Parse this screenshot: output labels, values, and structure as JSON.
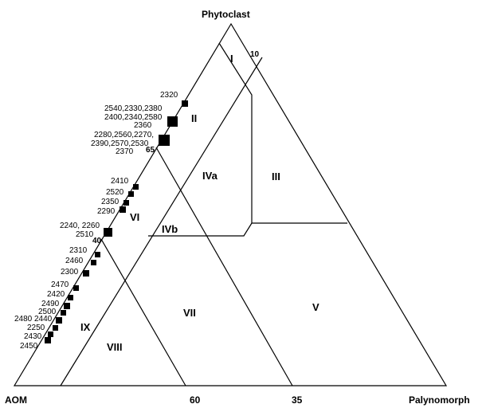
{
  "corners": {
    "top": "Phytoclast",
    "left": "AOM",
    "right": "Palynomorph"
  },
  "axis_ticks": {
    "base": [
      "60",
      "35"
    ],
    "left": [
      "65",
      "40"
    ],
    "right": [
      "10"
    ]
  },
  "fields": [
    "I",
    "II",
    "III",
    "IVa",
    "IVb",
    "V",
    "VI",
    "VII",
    "VIII",
    "IX"
  ],
  "sample_labels": [
    "2320",
    "2540,2330,2380",
    "2400,2340,2580",
    "2360",
    "2280,2560,2270,",
    "2390,2570,2530",
    "2370",
    "2410",
    "2520",
    "2350",
    "2290",
    "2240, 2260",
    "2510",
    "2310",
    "2460",
    "2300",
    "2470",
    "2420",
    "2490",
    "2500",
    "2480",
    "2440",
    "2250",
    "2430",
    "2450"
  ],
  "colors": {
    "line": "#000000",
    "marker": "#000000",
    "background": "#ffffff"
  }
}
